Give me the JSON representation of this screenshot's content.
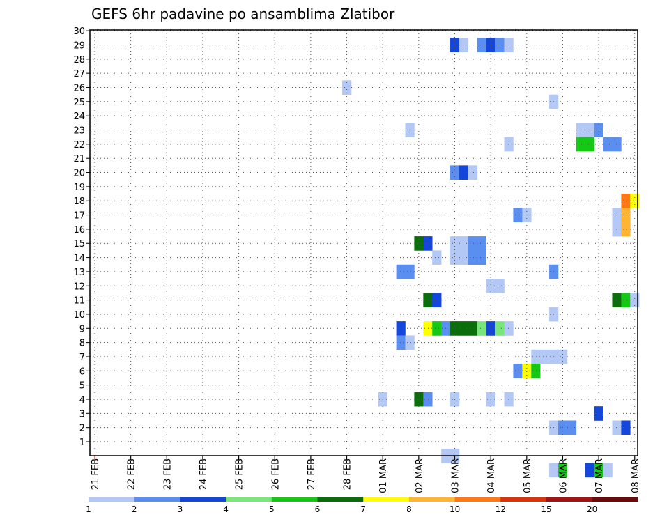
{
  "chart_data": {
    "type": "heatmap",
    "title": "GEFS 6hr padavine po ansamblima Zlatibor",
    "xlabel": "",
    "ylabel": "",
    "x_ticks": [
      "21 FEB",
      "22 FEB",
      "23 FEB",
      "24 FEB",
      "25 FEB",
      "26 FEB",
      "27 FEB",
      "28 FEB",
      "01 MAR",
      "02 MAR",
      "03 MAR",
      "04 MAR",
      "05 MAR",
      "06 MAR",
      "07 MAR",
      "08 MAR"
    ],
    "y_ticks": [
      1,
      2,
      3,
      4,
      5,
      6,
      7,
      8,
      9,
      10,
      11,
      12,
      13,
      14,
      15,
      16,
      17,
      18,
      19,
      20,
      21,
      22,
      23,
      24,
      25,
      26,
      27,
      28,
      29,
      30
    ],
    "ylim": [
      0,
      30
    ],
    "grid": true,
    "colorbar": {
      "labels": [
        "1",
        "2",
        "3",
        "4",
        "5",
        "6",
        "7",
        "8",
        "10",
        "12",
        "15",
        "20"
      ],
      "colors": [
        "#b4c8f6",
        "#5a8ef0",
        "#1446dc",
        "#78e678",
        "#14c814",
        "#0a6e0a",
        "#ffff00",
        "#ffb432",
        "#ff7814",
        "#dc320a",
        "#a01414",
        "#6e0a0a"
      ]
    },
    "cells": [
      {
        "t": "03 MAR 00",
        "m": 29,
        "c": 3
      },
      {
        "t": "03 MAR 06",
        "m": 29,
        "c": 1
      },
      {
        "t": "03 MAR 18",
        "m": 29,
        "c": 2
      },
      {
        "t": "04 MAR 00",
        "m": 29,
        "c": 3
      },
      {
        "t": "04 MAR 06",
        "m": 29,
        "c": 2
      },
      {
        "t": "04 MAR 12",
        "m": 29,
        "c": 1
      },
      {
        "t": "28 FEB 00",
        "m": 26,
        "c": 1
      },
      {
        "t": "05 MAR 18",
        "m": 25,
        "c": 1
      },
      {
        "t": "01 MAR 18",
        "m": 23,
        "c": 1
      },
      {
        "t": "06 MAR 12",
        "m": 23,
        "c": 1
      },
      {
        "t": "06 MAR 18",
        "m": 23,
        "c": 1
      },
      {
        "t": "07 MAR 00",
        "m": 23,
        "c": 2
      },
      {
        "t": "04 MAR 12",
        "m": 22,
        "c": 1
      },
      {
        "t": "06 MAR 12",
        "m": 22,
        "c": 5
      },
      {
        "t": "06 MAR 18",
        "m": 22,
        "c": 5
      },
      {
        "t": "07 MAR 06",
        "m": 22,
        "c": 2
      },
      {
        "t": "07 MAR 12",
        "m": 22,
        "c": 2
      },
      {
        "t": "03 MAR 00",
        "m": 20,
        "c": 2
      },
      {
        "t": "03 MAR 06",
        "m": 20,
        "c": 3
      },
      {
        "t": "03 MAR 12",
        "m": 20,
        "c": 1
      },
      {
        "t": "07 MAR 18",
        "m": 18,
        "c": 9
      },
      {
        "t": "08 MAR 00",
        "m": 18,
        "c": 7
      },
      {
        "t": "04 MAR 18",
        "m": 17,
        "c": 2
      },
      {
        "t": "05 MAR 00",
        "m": 17,
        "c": 1
      },
      {
        "t": "07 MAR 12",
        "m": 16,
        "c": 1
      },
      {
        "t": "07 MAR 18",
        "m": 16,
        "c": 8
      },
      {
        "t": "07 MAR 12",
        "m": 17,
        "c": 1
      },
      {
        "t": "07 MAR 18",
        "m": 17,
        "c": 8
      },
      {
        "t": "02 MAR 00",
        "m": 15,
        "c": 6
      },
      {
        "t": "02 MAR 06",
        "m": 15,
        "c": 3
      },
      {
        "t": "03 MAR 00",
        "m": 15,
        "c": 1
      },
      {
        "t": "03 MAR 06",
        "m": 15,
        "c": 1
      },
      {
        "t": "03 MAR 12",
        "m": 15,
        "c": 2
      },
      {
        "t": "03 MAR 18",
        "m": 15,
        "c": 2
      },
      {
        "t": "02 MAR 12",
        "m": 14,
        "c": 1
      },
      {
        "t": "03 MAR 00",
        "m": 14,
        "c": 1
      },
      {
        "t": "03 MAR 06",
        "m": 14,
        "c": 1
      },
      {
        "t": "03 MAR 12",
        "m": 14,
        "c": 2
      },
      {
        "t": "03 MAR 18",
        "m": 14,
        "c": 2
      },
      {
        "t": "01 MAR 12",
        "m": 13,
        "c": 2
      },
      {
        "t": "01 MAR 18",
        "m": 13,
        "c": 2
      },
      {
        "t": "05 MAR 18",
        "m": 13,
        "c": 2
      },
      {
        "t": "04 MAR 00",
        "m": 12,
        "c": 1
      },
      {
        "t": "04 MAR 06",
        "m": 12,
        "c": 1
      },
      {
        "t": "02 MAR 06",
        "m": 11,
        "c": 6
      },
      {
        "t": "02 MAR 12",
        "m": 11,
        "c": 3
      },
      {
        "t": "07 MAR 12",
        "m": 11,
        "c": 6
      },
      {
        "t": "07 MAR 18",
        "m": 11,
        "c": 5
      },
      {
        "t": "08 MAR 00",
        "m": 11,
        "c": 1
      },
      {
        "t": "05 MAR 18",
        "m": 10,
        "c": 1
      },
      {
        "t": "01 MAR 12",
        "m": 9,
        "c": 3
      },
      {
        "t": "02 MAR 06",
        "m": 9,
        "c": 7
      },
      {
        "t": "02 MAR 12",
        "m": 9,
        "c": 5
      },
      {
        "t": "02 MAR 18",
        "m": 9,
        "c": 2
      },
      {
        "t": "03 MAR 00",
        "m": 9,
        "c": 6
      },
      {
        "t": "03 MAR 06",
        "m": 9,
        "c": 6
      },
      {
        "t": "03 MAR 12",
        "m": 9,
        "c": 6
      },
      {
        "t": "03 MAR 18",
        "m": 9,
        "c": 4
      },
      {
        "t": "04 MAR 00",
        "m": 9,
        "c": 3
      },
      {
        "t": "04 MAR 06",
        "m": 9,
        "c": 4
      },
      {
        "t": "04 MAR 12",
        "m": 9,
        "c": 1
      },
      {
        "t": "01 MAR 12",
        "m": 8,
        "c": 2
      },
      {
        "t": "01 MAR 18",
        "m": 8,
        "c": 1
      },
      {
        "t": "05 MAR 06",
        "m": 7,
        "c": 1
      },
      {
        "t": "05 MAR 12",
        "m": 7,
        "c": 1
      },
      {
        "t": "05 MAR 18",
        "m": 7,
        "c": 1
      },
      {
        "t": "06 MAR 00",
        "m": 7,
        "c": 1
      },
      {
        "t": "04 MAR 18",
        "m": 6,
        "c": 2
      },
      {
        "t": "05 MAR 00",
        "m": 6,
        "c": 7
      },
      {
        "t": "05 MAR 06",
        "m": 6,
        "c": 5
      },
      {
        "t": "01 MAR 00",
        "m": 4,
        "c": 1
      },
      {
        "t": "02 MAR 00",
        "m": 4,
        "c": 6
      },
      {
        "t": "02 MAR 06",
        "m": 4,
        "c": 2
      },
      {
        "t": "03 MAR 00",
        "m": 4,
        "c": 1
      },
      {
        "t": "04 MAR 00",
        "m": 4,
        "c": 1
      },
      {
        "t": "04 MAR 12",
        "m": 4,
        "c": 1
      },
      {
        "t": "07 MAR 00",
        "m": 3,
        "c": 3
      },
      {
        "t": "05 MAR 18",
        "m": 2,
        "c": 1
      },
      {
        "t": "06 MAR 00",
        "m": 2,
        "c": 2
      },
      {
        "t": "06 MAR 06",
        "m": 2,
        "c": 2
      },
      {
        "t": "07 MAR 12",
        "m": 2,
        "c": 1
      },
      {
        "t": "07 MAR 18",
        "m": 2,
        "c": 3
      },
      {
        "t": "02 MAR 18",
        "m": 0,
        "c": 1
      },
      {
        "t": "03 MAR 00",
        "m": 0,
        "c": 1
      },
      {
        "t": "05 MAR 18",
        "m": -1,
        "c": 1
      },
      {
        "t": "06 MAR 00",
        "m": -1,
        "c": 5
      },
      {
        "t": "06 MAR 18",
        "m": -1,
        "c": 3
      },
      {
        "t": "07 MAR 00",
        "m": -1,
        "c": 5
      },
      {
        "t": "07 MAR 06",
        "m": -1,
        "c": 1
      }
    ]
  }
}
